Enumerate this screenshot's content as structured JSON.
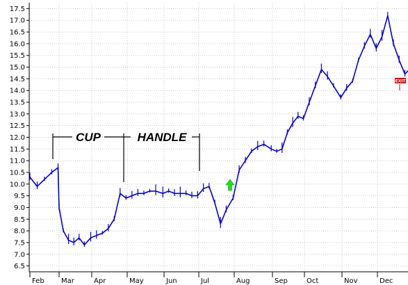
{
  "chart_data": {
    "type": "line",
    "title": "",
    "xlabel": "",
    "ylabel": "",
    "ylim": [
      6.25,
      17.75
    ],
    "y_ticks": [
      "6.5",
      "7.0",
      "7.5",
      "8.0",
      "8.5",
      "9.0",
      "9.5",
      "10.0",
      "10.5",
      "11.0",
      "11.5",
      "12.0",
      "12.5",
      "13.0",
      "13.5",
      "14.0",
      "14.5",
      "15.0",
      "15.5",
      "16.0",
      "16.5",
      "17.0",
      "17.5"
    ],
    "x_ticks": [
      "Feb",
      "Mar",
      "Apr",
      "May",
      "Jun",
      "Jul",
      "Aug",
      "Sep",
      "Oct",
      "Nov",
      "Dec"
    ],
    "grid": true,
    "legend": "none",
    "series": [
      {
        "color": "#0000cc",
        "x": [
          "Feb 1",
          "Feb 8",
          "Feb 15",
          "Feb 22",
          "Feb 28",
          "Mar 1",
          "Mar 5",
          "Mar 10",
          "Mar 15",
          "Mar 20",
          "Mar 25",
          "Mar 31",
          "Apr 5",
          "Apr 10",
          "Apr 15",
          "Apr 20",
          "Apr 25",
          "Apr 30",
          "May 5",
          "May 10",
          "May 15",
          "May 20",
          "May 25",
          "May 31",
          "Jun 5",
          "Jun 10",
          "Jun 15",
          "Jun 20",
          "Jun 25",
          "Jun 30",
          "Jul 5",
          "Jul 10",
          "Jul 15",
          "Jul 20",
          "Jul 25",
          "Jul 31",
          "Aug 5",
          "Aug 10",
          "Aug 15",
          "Aug 20",
          "Aug 25",
          "Aug 31",
          "Sep 5",
          "Sep 10",
          "Sep 15",
          "Sep 20",
          "Sep 25",
          "Sep 30",
          "Oct 5",
          "Oct 10",
          "Oct 15",
          "Oct 20",
          "Oct 25",
          "Oct 31",
          "Nov 5",
          "Nov 10",
          "Nov 15",
          "Nov 20",
          "Nov 25",
          "Nov 30",
          "Dec 5",
          "Dec 10",
          "Dec 15",
          "Dec 20",
          "Dec 25",
          "Dec 31"
        ],
        "y": [
          10.3,
          9.9,
          10.2,
          10.5,
          10.7,
          9.0,
          8.0,
          7.6,
          7.5,
          7.7,
          7.4,
          7.7,
          7.8,
          7.9,
          8.1,
          8.5,
          9.6,
          9.4,
          9.5,
          9.6,
          9.6,
          9.7,
          9.7,
          9.6,
          9.7,
          9.6,
          9.6,
          9.6,
          9.5,
          9.5,
          9.8,
          9.9,
          9.2,
          8.3,
          8.9,
          9.4,
          10.6,
          11.0,
          11.4,
          11.6,
          11.7,
          11.5,
          11.4,
          11.5,
          12.2,
          12.6,
          12.9,
          12.8,
          13.5,
          14.2,
          14.9,
          14.6,
          14.2,
          13.7,
          14.1,
          14.4,
          15.3,
          15.9,
          16.4,
          15.8,
          16.3,
          17.2,
          16.0,
          15.3,
          14.7,
          15.0
        ]
      }
    ],
    "annotations": [
      {
        "text": "CUP"
      },
      {
        "text": "HANDLE"
      },
      {
        "text": "EXIT"
      }
    ]
  }
}
